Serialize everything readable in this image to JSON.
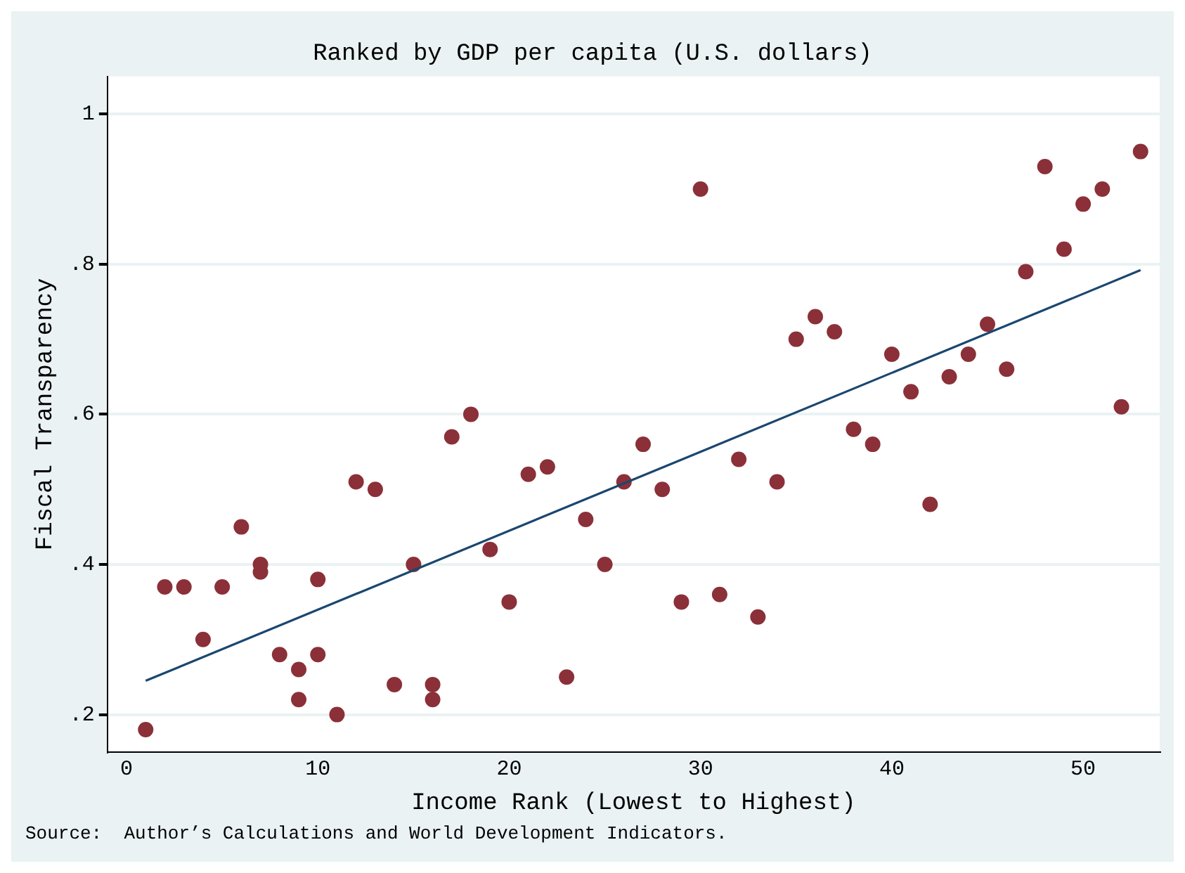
{
  "chart_data": {
    "type": "scatter",
    "title": "Ranked by GDP per capita (U.S. dollars)",
    "xlabel": "Income Rank (Lowest to Highest)",
    "ylabel": "Fiscal Transparency",
    "annotations": [
      "Source:  Author’s Calculations and World Development Indicators."
    ],
    "xlim": [
      -1,
      54
    ],
    "xticks": [
      0,
      10,
      20,
      30,
      40,
      50
    ],
    "ylim": [
      0.15,
      1.05
    ],
    "yticks": [
      {
        "value": 0.2,
        "label": ".2"
      },
      {
        "value": 0.4,
        "label": ".4"
      },
      {
        "value": 0.6,
        "label": ".6"
      },
      {
        "value": 0.8,
        "label": ".8"
      },
      {
        "value": 1,
        "label": "1"
      }
    ],
    "grid": "y",
    "legend": false,
    "marker": "circle",
    "series": [
      {
        "type": "scatter",
        "color": "#8b3038",
        "x": [
          1,
          2,
          3,
          4,
          5,
          6,
          7,
          7,
          8,
          9,
          9,
          10,
          10,
          11,
          12,
          13,
          14,
          15,
          16,
          16,
          17,
          18,
          19,
          20,
          21,
          22,
          23,
          24,
          25,
          26,
          27,
          28,
          29,
          30,
          31,
          32,
          33,
          34,
          35,
          36,
          37,
          38,
          39,
          40,
          41,
          42,
          43,
          44,
          45,
          46,
          47,
          48,
          49,
          50,
          51,
          52,
          53
        ],
        "values": [
          0.18,
          0.37,
          0.37,
          0.3,
          0.37,
          0.45,
          0.4,
          0.39,
          0.28,
          0.26,
          0.22,
          0.38,
          0.28,
          0.2,
          0.51,
          0.5,
          0.24,
          0.4,
          0.24,
          0.22,
          0.57,
          0.6,
          0.42,
          0.35,
          0.52,
          0.53,
          0.25,
          0.46,
          0.4,
          0.51,
          0.56,
          0.5,
          0.35,
          0.9,
          0.36,
          0.54,
          0.33,
          0.51,
          0.7,
          0.73,
          0.71,
          0.58,
          0.56,
          0.68,
          0.63,
          0.48,
          0.65,
          0.68,
          0.72,
          0.66,
          0.79,
          0.93,
          0.82,
          0.88,
          0.9,
          0.61,
          0.95
        ]
      },
      {
        "type": "line",
        "color": "#1a476f",
        "marker": "none",
        "line_style": "solid",
        "x": [
          1,
          53
        ],
        "values": [
          0.245,
          0.792
        ]
      }
    ]
  }
}
